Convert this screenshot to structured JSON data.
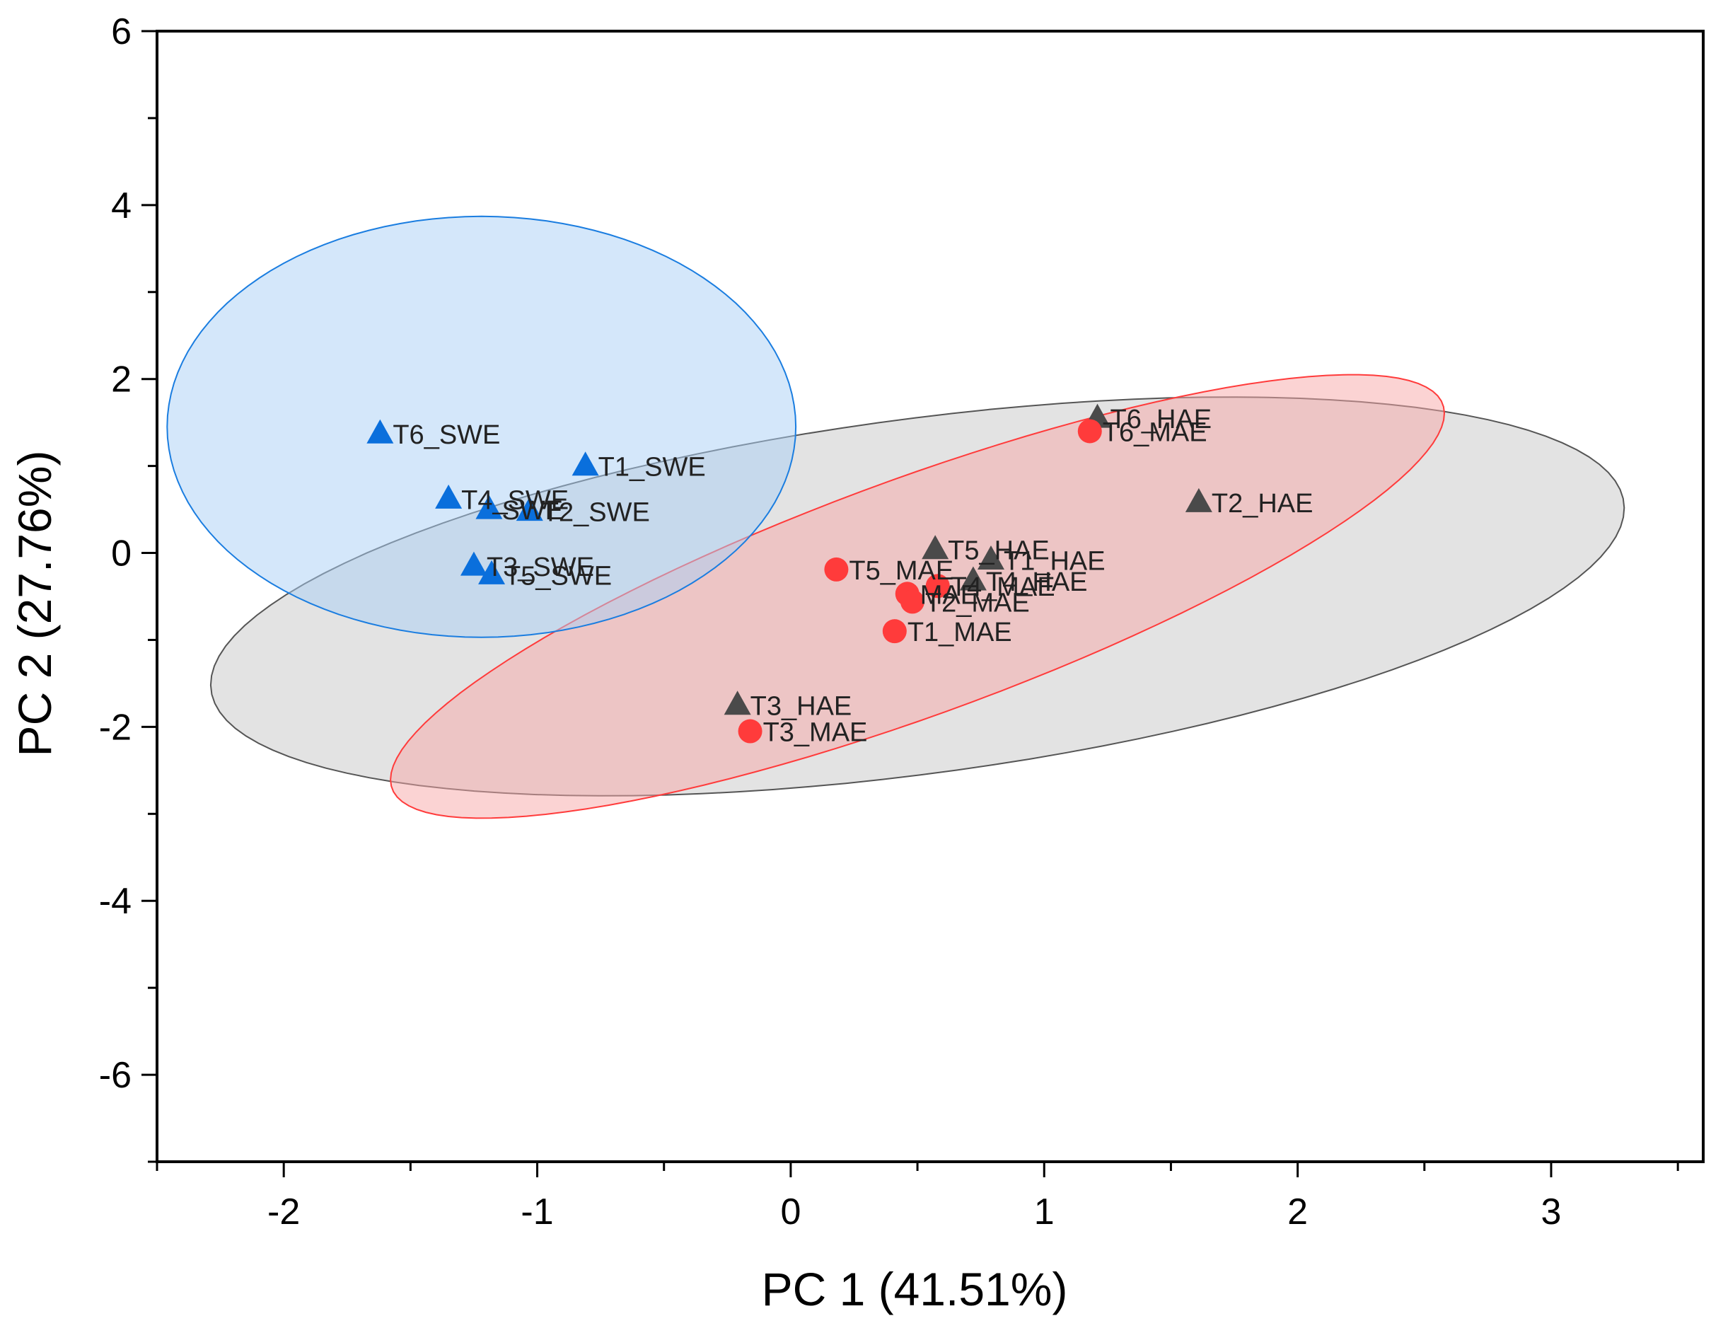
{
  "chart_data": {
    "type": "scatter",
    "title": "",
    "xlabel": "PC 1 (41.51%)",
    "ylabel": "PC 2 (27.76%)",
    "xlim": [
      -2.5,
      3.6
    ],
    "ylim": [
      -7,
      6
    ],
    "grid": false,
    "x_ticks": [
      -2,
      -1,
      0,
      1,
      2,
      3
    ],
    "y_ticks": [
      -6,
      -4,
      -2,
      0,
      2,
      4,
      6
    ],
    "x_tick_labels": [
      "-2",
      "-1",
      "0",
      "1",
      "2",
      "3"
    ],
    "y_tick_labels": [
      "-6",
      "-4",
      "-2",
      "0",
      "2",
      "4",
      "6"
    ],
    "series": [
      {
        "name": "HAE",
        "marker": "triangle",
        "color": "#4a4a4a",
        "ellipse": {
          "cx": 0.5,
          "cy": -0.5,
          "rx": 3.1,
          "ry": 1.85,
          "angle_deg": 33.0,
          "fill": "#c8c8c8",
          "stroke": "#555555"
        },
        "points": [
          {
            "label": "T6_HAE",
            "x": 1.21,
            "y": 1.55
          },
          {
            "label": "T2_HAE",
            "x": 1.61,
            "y": 0.58
          },
          {
            "label": "T5_HAE",
            "x": 0.57,
            "y": 0.04
          },
          {
            "label": "T1_HAE",
            "x": 0.79,
            "y": -0.08
          },
          {
            "label": "T4_HAE",
            "x": 0.72,
            "y": -0.32
          },
          {
            "label": "T3_HAE",
            "x": -0.21,
            "y": -1.75
          }
        ]
      },
      {
        "name": "MAE",
        "marker": "circle",
        "color": "#ff3b3b",
        "ellipse": {
          "cx": 0.5,
          "cy": -0.5,
          "rx": 3.15,
          "ry": 0.95,
          "angle_deg": 52.0,
          "fill": "#f7a8a8",
          "stroke": "#ff3b3b"
        },
        "points": [
          {
            "label": "T6_MAE",
            "x": 1.18,
            "y": 1.4
          },
          {
            "label": "T5_MAE",
            "x": 0.18,
            "y": -0.19
          },
          {
            "label": "T4_MAE",
            "x": 0.58,
            "y": -0.38
          },
          {
            "label": "MAE",
            "x": 0.46,
            "y": -0.47
          },
          {
            "label": "T2_MAE",
            "x": 0.48,
            "y": -0.56
          },
          {
            "label": "T1_MAE",
            "x": 0.41,
            "y": -0.9
          },
          {
            "label": "T3_MAE",
            "x": -0.16,
            "y": -2.05
          }
        ]
      },
      {
        "name": "SWE",
        "marker": "triangle",
        "color": "#0a6fdc",
        "ellipse": {
          "cx": -1.22,
          "cy": 1.45,
          "rx": 1.24,
          "ry": 2.42,
          "angle_deg": 0.0,
          "fill": "#a9cff5",
          "stroke": "#1a7de0"
        },
        "points": [
          {
            "label": "T6_SWE",
            "x": -1.62,
            "y": 1.37
          },
          {
            "label": "T1_SWE",
            "x": -0.81,
            "y": 1.0
          },
          {
            "label": "T4_SWE",
            "x": -1.35,
            "y": 0.62
          },
          {
            "label": "SWE",
            "x": -1.19,
            "y": 0.5
          },
          {
            "label": "T2_SWE",
            "x": -1.03,
            "y": 0.48
          },
          {
            "label": "T3_SWE",
            "x": -1.25,
            "y": -0.15
          },
          {
            "label": "T5_SWE",
            "x": -1.18,
            "y": -0.25
          }
        ]
      }
    ],
    "legend": "none"
  }
}
